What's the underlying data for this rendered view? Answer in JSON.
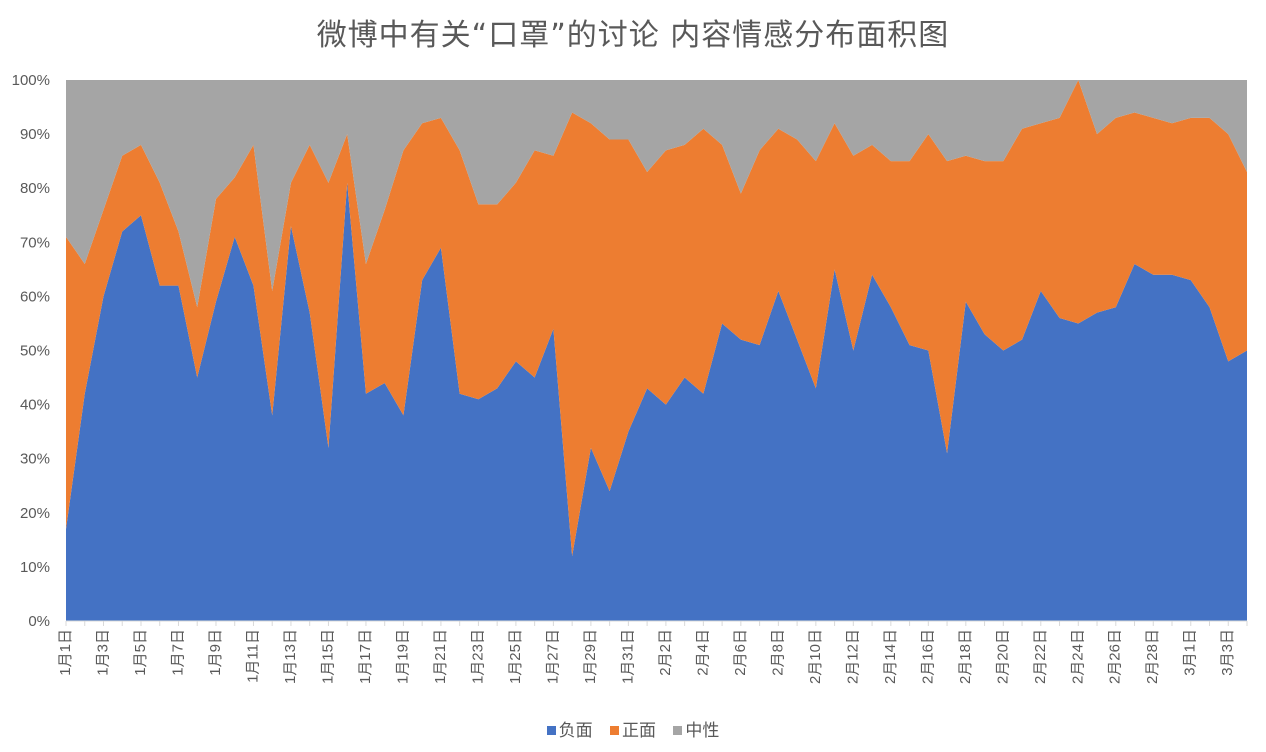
{
  "chart_data": {
    "type": "area",
    "stacked": "percent",
    "title": "微博中有关“口罩”的讨论 内容情感分布面积图",
    "xlabel": "",
    "ylabel": "",
    "ylim": [
      0,
      100
    ],
    "y_ticks": [
      "0%",
      "10%",
      "20%",
      "30%",
      "40%",
      "50%",
      "60%",
      "70%",
      "80%",
      "90%",
      "100%"
    ],
    "x_tick_labels": [
      "1月1日",
      "1月3日",
      "1月5日",
      "1月7日",
      "1月9日",
      "1月11日",
      "1月13日",
      "1月15日",
      "1月17日",
      "1月19日",
      "1月21日",
      "1月23日",
      "1月25日",
      "1月27日",
      "1月29日",
      "1月31日",
      "2月2日",
      "2月4日",
      "2月6日",
      "2月8日",
      "2月10日",
      "2月12日",
      "2月14日",
      "2月16日",
      "2月18日",
      "2月20日",
      "2月22日",
      "2月24日",
      "2月26日",
      "2月28日",
      "3月1日",
      "3月3日"
    ],
    "x": [
      "1月1日",
      "1月2日",
      "1月3日",
      "1月4日",
      "1月5日",
      "1月6日",
      "1月7日",
      "1月8日",
      "1月9日",
      "1月10日",
      "1月11日",
      "1月12日",
      "1月13日",
      "1月14日",
      "1月15日",
      "1月16日",
      "1月17日",
      "1月18日",
      "1月19日",
      "1月20日",
      "1月21日",
      "1月22日",
      "1月23日",
      "1月24日",
      "1月25日",
      "1月26日",
      "1月27日",
      "1月28日",
      "1月29日",
      "1月30日",
      "1月31日",
      "2月1日",
      "2月2日",
      "2月3日",
      "2月4日",
      "2月5日",
      "2月6日",
      "2月7日",
      "2月8日",
      "2月9日",
      "2月10日",
      "2月11日",
      "2月12日",
      "2月13日",
      "2月14日",
      "2月15日",
      "2月16日",
      "2月17日",
      "2月18日",
      "2月19日",
      "2月20日",
      "2月21日",
      "2月22日",
      "2月23日",
      "2月24日",
      "2月25日",
      "2月26日",
      "2月27日",
      "2月28日",
      "2月29日",
      "3月1日",
      "3月2日",
      "3月3日",
      "3月4日"
    ],
    "series": [
      {
        "name": "负面",
        "color": "#4472c4",
        "values": [
          17,
          42,
          60,
          72,
          75,
          62,
          62,
          45,
          59,
          71,
          62,
          38,
          73,
          57,
          32,
          81,
          42,
          44,
          38,
          63,
          69,
          42,
          41,
          43,
          48,
          45,
          54,
          12,
          32,
          24,
          35,
          43,
          40,
          45,
          42,
          55,
          52,
          51,
          61,
          52,
          43,
          65,
          50,
          64,
          58,
          51,
          50,
          31,
          59,
          53,
          50,
          52,
          61,
          56,
          55,
          57,
          58,
          66,
          64,
          64,
          63,
          58,
          48,
          50
        ]
      },
      {
        "name": "正面",
        "color": "#ed7d31",
        "values": [
          54,
          24,
          16,
          14,
          13,
          19,
          10,
          13,
          19,
          11,
          26,
          23,
          8,
          31,
          49,
          9,
          24,
          32,
          49,
          29,
          24,
          45,
          36,
          34,
          33,
          42,
          32,
          82,
          60,
          65,
          54,
          40,
          47,
          43,
          49,
          33,
          27,
          36,
          30,
          37,
          42,
          27,
          36,
          24,
          27,
          34,
          40,
          54,
          27,
          32,
          35,
          39,
          31,
          37,
          45,
          33,
          35,
          28,
          29,
          28,
          30,
          35,
          42,
          33
        ]
      },
      {
        "name": "中性",
        "color": "#a5a5a5",
        "values": [
          29,
          34,
          24,
          14,
          12,
          19,
          28,
          42,
          22,
          18,
          12,
          39,
          19,
          12,
          19,
          10,
          34,
          24,
          13,
          8,
          7,
          13,
          23,
          23,
          19,
          13,
          14,
          6,
          8,
          11,
          11,
          17,
          13,
          12,
          9,
          12,
          21,
          13,
          9,
          11,
          15,
          8,
          14,
          12,
          15,
          15,
          10,
          15,
          14,
          15,
          15,
          9,
          8,
          7,
          0,
          10,
          7,
          6,
          7,
          8,
          7,
          7,
          10,
          17
        ]
      }
    ],
    "legend_position": "bottom",
    "grid": false
  }
}
